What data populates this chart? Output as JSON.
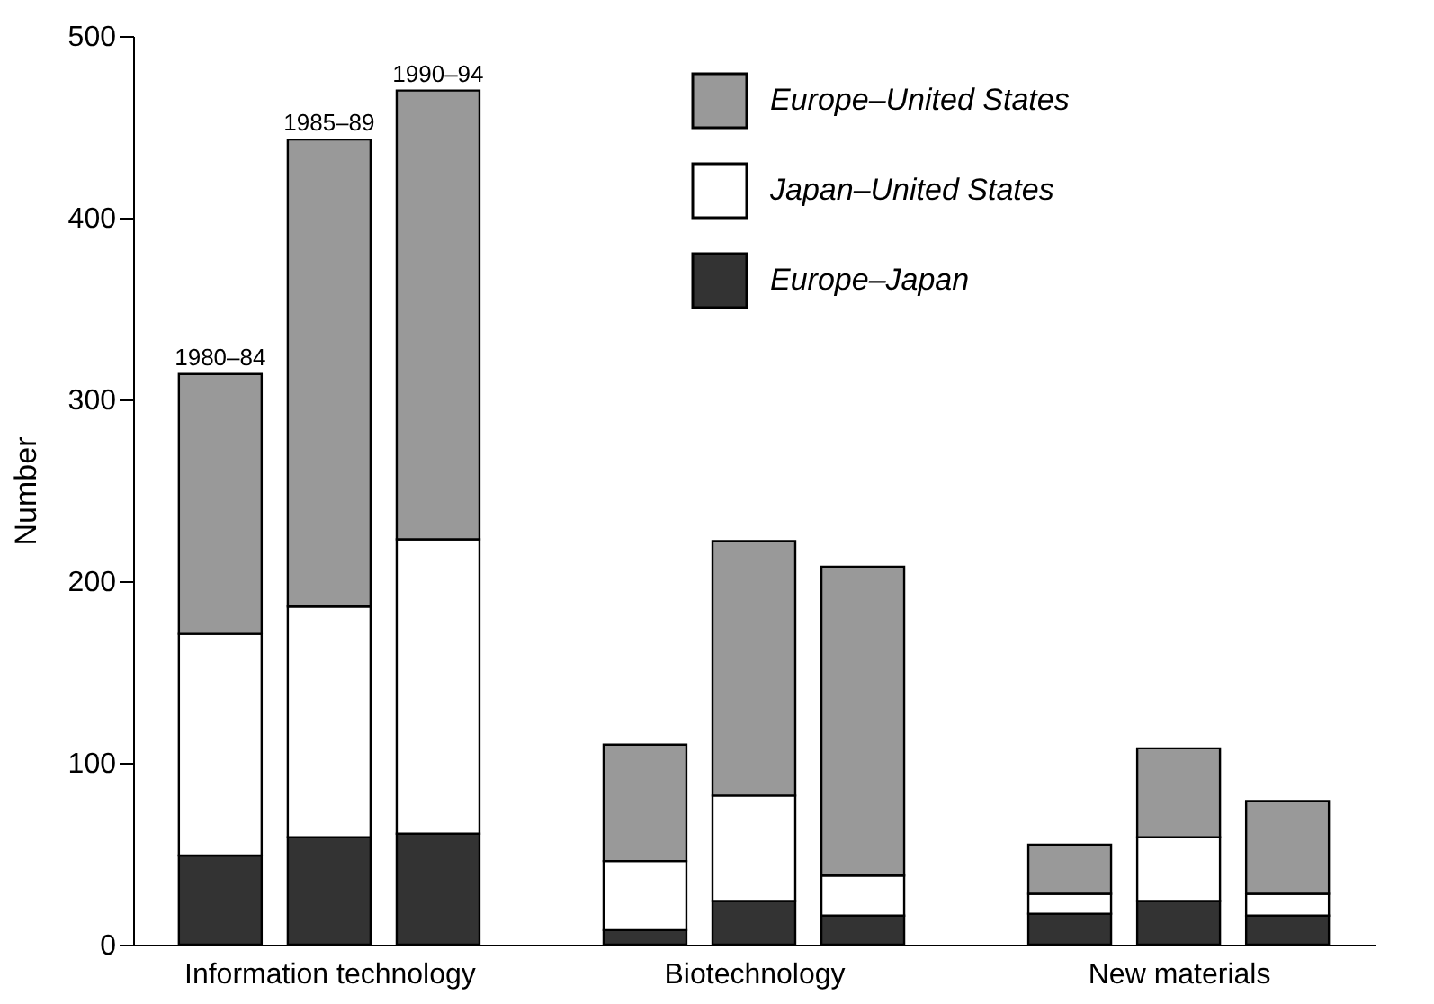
{
  "chart_data": {
    "type": "bar",
    "stacked": true,
    "ylabel": "Number",
    "categories": [
      null,
      "Information technology",
      null,
      null,
      "Biotechnology",
      null,
      null,
      "New materials",
      null
    ],
    "series": [
      {
        "name": "Europe–Japan",
        "color": "#333333",
        "values": [
          49,
          59,
          61,
          8,
          24,
          16,
          17,
          24,
          16
        ]
      },
      {
        "name": "Japan–United States",
        "color": "#ffffff",
        "values": [
          122,
          127,
          162,
          38,
          58,
          22,
          11,
          35,
          12
        ]
      },
      {
        "name": "Europe–United States",
        "color": "#999999",
        "values": [
          143,
          257,
          247,
          64,
          140,
          170,
          27,
          49,
          51
        ]
      }
    ],
    "annotations": [
      "1980–84",
      "1985–89",
      "1990–94"
    ],
    "ylim": [
      0,
      500
    ],
    "yticks": [
      0,
      100,
      200,
      300,
      400,
      500
    ],
    "grid": false,
    "legend": "top right"
  }
}
